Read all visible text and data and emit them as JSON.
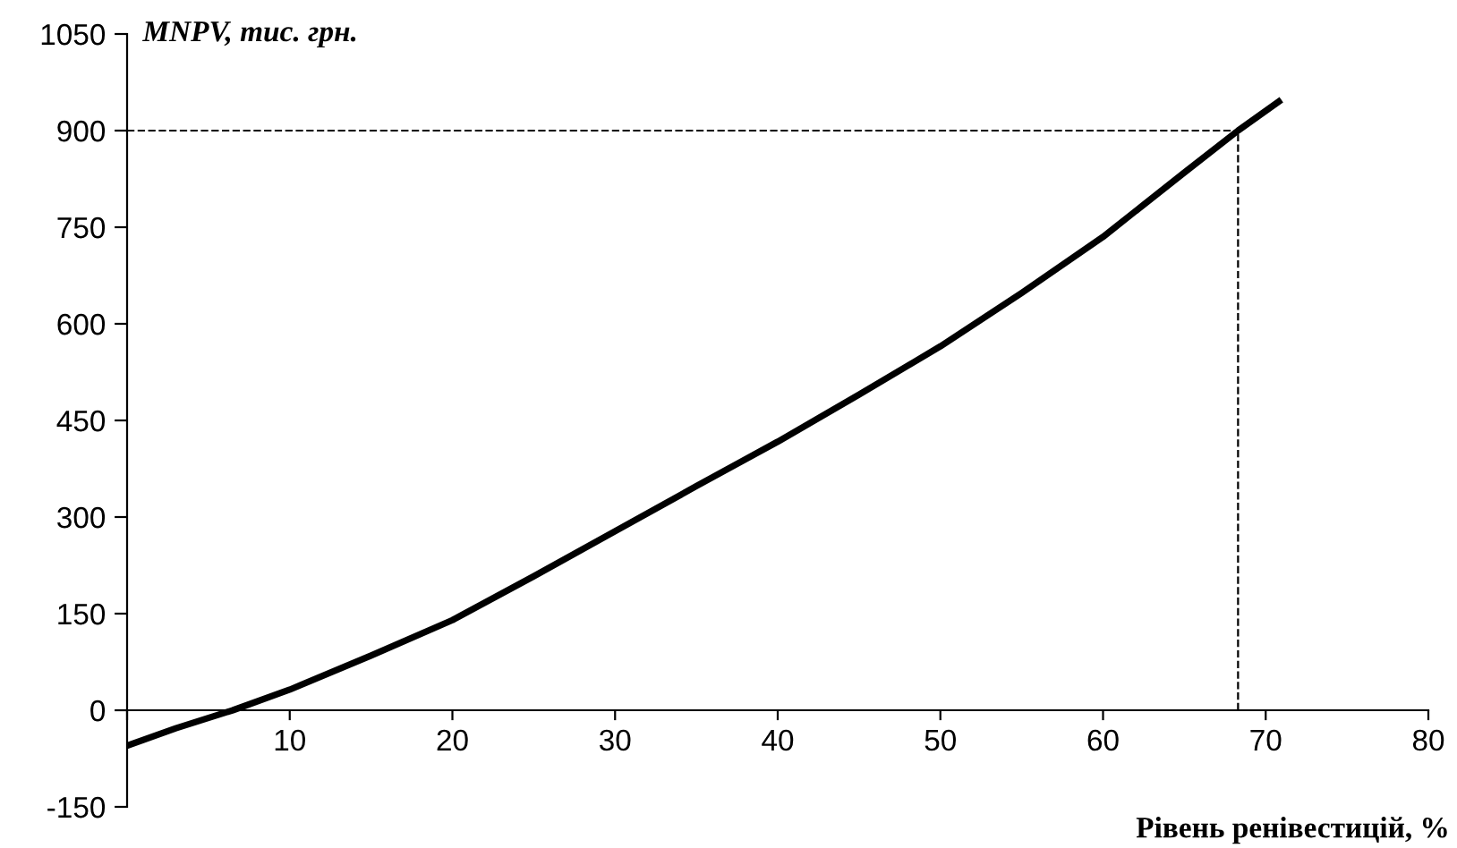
{
  "chart_data": {
    "type": "line",
    "xlabel": "Рівень ренівестицій, %",
    "ylabel": "MNPV, тис. грн.",
    "x": [
      0,
      3,
      6.5,
      10,
      15,
      20,
      25,
      30,
      35,
      40,
      45,
      50,
      55,
      60,
      65,
      68.3,
      70.8
    ],
    "series": [
      {
        "color": "#000000",
        "values": [
          -55,
          -28,
          0,
          32,
          85,
          140,
          208,
          278,
          348,
          417,
          490,
          565,
          648,
          735,
          835,
          900,
          945
        ]
      }
    ],
    "xlim": [
      0,
      80
    ],
    "xticks": [
      {
        "value": 0,
        "label": null
      },
      10,
      20,
      30,
      40,
      50,
      60,
      70,
      80
    ],
    "ylim": [
      -150,
      1050
    ],
    "yticks": [
      -150,
      0,
      150,
      300,
      450,
      600,
      750,
      900,
      1050
    ],
    "ref_lines": [
      {
        "axis": "y",
        "value": 900,
        "line_style": "dashed",
        "color": "#000000"
      },
      {
        "axis": "x",
        "value": 68.3,
        "line_style": "dashed",
        "color": "#000000"
      }
    ],
    "grid": false,
    "legend": false,
    "marker": "none",
    "line_style": "solid"
  }
}
